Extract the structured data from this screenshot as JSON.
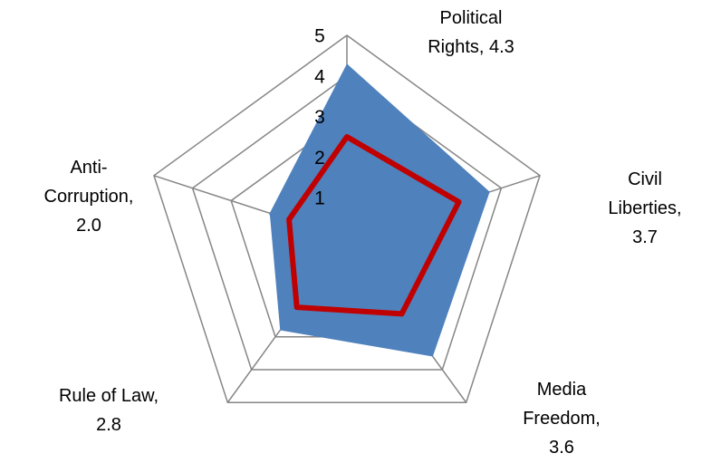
{
  "chart_data": {
    "type": "radar",
    "ylim": [
      0,
      5
    ],
    "yticks": [
      1,
      2,
      3,
      4,
      5
    ],
    "grid": true,
    "series": [
      {
        "color": "#4f81bd",
        "fill": true,
        "values": [
          4.3,
          3.7,
          3.6,
          2.8,
          2.0
        ],
        "value_labels": [
          "Political\nRights, 4.3",
          "Civil\nLiberties, 3.7",
          "Media\nFreedom,\n3.6",
          "Rule of Law,\n2.8",
          "Anti-\nCorruption,\n2.0"
        ]
      },
      {
        "color": "#c00000",
        "fill": false,
        "values": [
          2.5,
          2.9,
          2.3,
          2.1,
          1.5
        ]
      }
    ]
  }
}
